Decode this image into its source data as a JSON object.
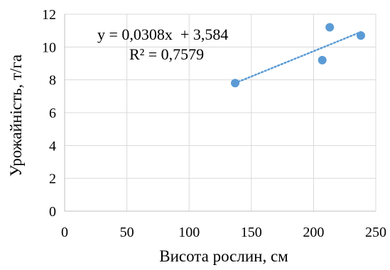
{
  "chart_data": {
    "type": "scatter",
    "xlabel": "Висота рослин, см",
    "ylabel": "Урожайність, т/га",
    "xlim": [
      0,
      250
    ],
    "ylim": [
      0,
      12
    ],
    "xticks": [
      0,
      50,
      100,
      150,
      200,
      250
    ],
    "yticks": [
      0,
      2,
      4,
      6,
      8,
      10,
      12
    ],
    "x_tick_labels": [
      "0",
      "50",
      "100",
      "150",
      "200",
      "250"
    ],
    "y_tick_labels": [
      "0",
      "2",
      "4",
      "6",
      "8",
      "10",
      "12"
    ],
    "grid": true,
    "points": [
      {
        "x": 137,
        "y": 7.8
      },
      {
        "x": 207,
        "y": 9.2
      },
      {
        "x": 213,
        "y": 11.2
      },
      {
        "x": 238,
        "y": 10.7
      }
    ],
    "trendline": {
      "type": "linear",
      "slope": 0.0308,
      "intercept": 3.584,
      "x_range": [
        137,
        238
      ],
      "equation_label": "y = 0,0308x  + 3,584",
      "r2_label": "R² = 0,7579"
    },
    "colors": {
      "marker": "#5B9BD5",
      "trendline": "#5B9BD5",
      "grid": "#D9D9D9",
      "axis": "#BFBFBF"
    }
  }
}
